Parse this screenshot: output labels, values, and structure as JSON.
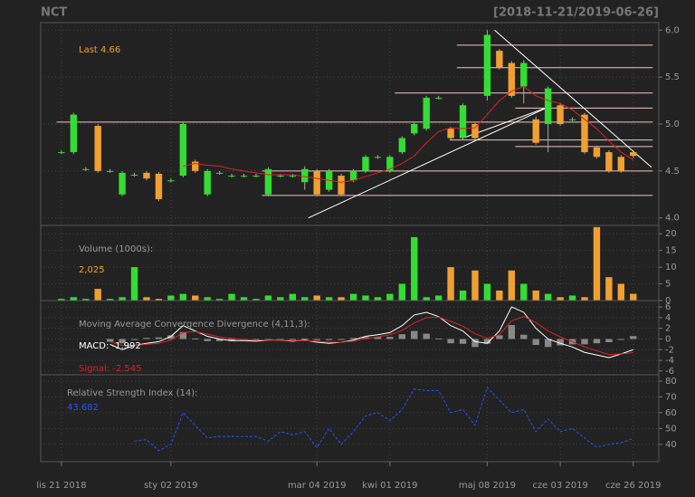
{
  "chart_data": [
    {
      "type": "candlestick",
      "title": "NCT",
      "subtitle": "[2018-11-21/2019-06-26]",
      "annotation": "Last 4.66",
      "up_color": "#33dd33",
      "down_color": "#f0a030",
      "ma_color": "#dd2222",
      "xlim": [
        -1.7,
        49.1
      ],
      "ylim": [
        3.92,
        6.08
      ],
      "yticks": [
        {
          "value": 4,
          "label": "4.0"
        },
        4.5,
        {
          "value": 5,
          "label": "5.0"
        },
        5.5,
        {
          "value": 6,
          "label": "6.0"
        }
      ],
      "open": [
        4.7,
        4.7,
        4.52,
        4.98,
        4.5,
        4.25,
        4.46,
        4.48,
        4.47,
        4.4,
        4.45,
        4.6,
        4.25,
        4.48,
        4.45,
        4.45,
        4.45,
        4.25,
        4.45,
        4.45,
        4.38,
        4.5,
        4.3,
        4.45,
        4.4,
        4.5,
        4.65,
        4.5,
        4.7,
        4.9,
        4.95,
        5.28,
        4.95,
        4.85,
        5.0,
        5.3,
        5.78,
        5.65,
        5.4,
        5.05,
        5.0,
        5.2,
        5.05,
        5.1,
        4.75,
        4.7,
        4.65,
        4.7
      ],
      "high": [
        4.72,
        5.12,
        4.54,
        5.0,
        4.52,
        4.5,
        4.48,
        4.5,
        4.49,
        4.42,
        5.02,
        4.62,
        4.52,
        4.5,
        4.47,
        4.47,
        4.47,
        4.54,
        4.47,
        4.47,
        4.55,
        4.52,
        4.52,
        4.47,
        4.52,
        4.67,
        4.67,
        4.67,
        4.87,
        5.02,
        5.3,
        5.3,
        4.97,
        5.22,
        5.02,
        6.0,
        5.8,
        5.67,
        5.68,
        5.08,
        5.4,
        5.22,
        5.07,
        5.12,
        4.77,
        4.72,
        4.67,
        4.72
      ],
      "low": [
        4.68,
        4.68,
        4.5,
        4.48,
        4.48,
        4.23,
        4.44,
        4.4,
        4.18,
        4.38,
        4.43,
        4.48,
        4.23,
        4.46,
        4.43,
        4.43,
        4.43,
        4.23,
        4.43,
        4.43,
        4.3,
        4.23,
        4.28,
        4.23,
        4.38,
        4.48,
        4.63,
        4.48,
        4.68,
        4.88,
        4.93,
        5.26,
        4.83,
        4.83,
        4.83,
        5.25,
        5.58,
        5.28,
        5.22,
        4.78,
        4.7,
        4.98,
        5.03,
        4.68,
        4.63,
        4.48,
        4.48,
        4.64
      ],
      "close": [
        4.7,
        5.1,
        4.52,
        4.5,
        4.5,
        4.48,
        4.46,
        4.42,
        4.2,
        4.4,
        5.0,
        4.5,
        4.5,
        4.48,
        4.45,
        4.45,
        4.45,
        4.52,
        4.45,
        4.45,
        4.52,
        4.25,
        4.5,
        4.25,
        4.5,
        4.65,
        4.65,
        4.65,
        4.85,
        5.0,
        5.28,
        5.28,
        4.85,
        5.2,
        4.85,
        5.95,
        5.6,
        5.3,
        5.65,
        4.8,
        5.38,
        5.0,
        5.05,
        4.7,
        4.65,
        4.5,
        4.5,
        4.66
      ],
      "ma": [
        null,
        null,
        null,
        null,
        null,
        null,
        null,
        null,
        null,
        null,
        4.55,
        4.58,
        4.56,
        4.55,
        4.52,
        4.5,
        4.48,
        4.46,
        4.46,
        4.46,
        4.44,
        4.42,
        4.4,
        4.38,
        4.4,
        4.44,
        4.48,
        4.52,
        4.58,
        4.66,
        4.8,
        4.92,
        4.96,
        4.95,
        4.96,
        5.1,
        5.25,
        5.35,
        5.4,
        5.3,
        5.25,
        5.22,
        5.15,
        5.05,
        4.95,
        4.82,
        4.7,
        4.62
      ],
      "segments": [
        {
          "color": "#f4c4c4",
          "x": [
            32.5,
            48.6
          ],
          "y": [
            5.84,
            5.84
          ]
        },
        {
          "color": "#f4c4c4",
          "x": [
            32.5,
            48.6
          ],
          "y": [
            5.6,
            5.6
          ]
        },
        {
          "color": "#f4c4c4",
          "x": [
            27.4,
            48.6
          ],
          "y": [
            5.33,
            5.33
          ]
        },
        {
          "color": "#f4c4c4",
          "x": [
            37.3,
            48.6
          ],
          "y": [
            5.17,
            5.17
          ]
        },
        {
          "color": "#f4c4c4",
          "x": [
            -0.4,
            48.6
          ],
          "y": [
            5.02,
            5.02
          ]
        },
        {
          "color": "#f4c4c4",
          "x": [
            31.9,
            48.6
          ],
          "y": [
            4.83,
            4.83
          ]
        },
        {
          "color": "#f4c4c4",
          "x": [
            37.3,
            48.6
          ],
          "y": [
            4.76,
            4.76
          ]
        },
        {
          "color": "#f4c4c4",
          "x": [
            16.5,
            48.6
          ],
          "y": [
            4.5,
            4.5
          ]
        },
        {
          "color": "#f4c4c4",
          "x": [
            16.5,
            48.6
          ],
          "y": [
            4.24,
            4.24
          ]
        },
        {
          "color": "#ffffff",
          "x": [
            20.3,
            40
          ],
          "y": [
            4.0,
            5.18
          ]
        },
        {
          "color": "#ffffff",
          "x": [
            33.2,
            40
          ],
          "y": [
            4.86,
            5.18
          ]
        },
        {
          "color": "#ffffff",
          "x": [
            35.6,
            48.5
          ],
          "y": [
            6.0,
            4.54
          ]
        }
      ]
    },
    {
      "type": "bar",
      "label": "Volume (1000s):",
      "annotation": "2,025",
      "xlim": [
        -1.7,
        49.1
      ],
      "ylim": [
        0,
        22.5
      ],
      "yticks": [
        0,
        5,
        10,
        15,
        20
      ],
      "values": [
        0.5,
        1,
        0.5,
        3.5,
        0.5,
        1,
        10,
        1,
        0.5,
        1.5,
        2,
        1.5,
        1,
        0.5,
        2,
        1,
        0.5,
        1.5,
        1,
        2,
        1,
        1.5,
        1,
        1,
        2,
        1.5,
        1,
        2,
        5,
        19,
        1,
        1.5,
        10,
        3,
        9,
        5,
        3,
        9,
        5,
        3,
        2,
        1,
        1.5,
        1,
        22,
        7,
        5,
        2.025
      ]
    },
    {
      "type": "line",
      "label": "Moving Average Convergence Divergence (4,11,3):",
      "macd_label": "MACD: -1.992",
      "signal_label": "Signal: -2.545",
      "xlim": [
        -1.7,
        49.1
      ],
      "ylim": [
        -6.7,
        7.2
      ],
      "yticks": [
        -6,
        -4,
        -2,
        0,
        2,
        4,
        6
      ],
      "series": [
        {
          "kind": "bar",
          "color": "#888888",
          "values": [
            null,
            null,
            null,
            null,
            -0.5,
            -0.8,
            0,
            0.2,
            0.3,
            0.7,
            1.3,
            0.1,
            -0.4,
            -0.4,
            -0.4,
            -0.2,
            -0.2,
            0,
            0,
            -0.1,
            0.1,
            -0.2,
            -0.2,
            0,
            0.2,
            0.4,
            0.4,
            0.4,
            0.9,
            1.5,
            1.0,
            0.1,
            -0.8,
            -0.9,
            -1.5,
            -0.9,
            0.7,
            2.6,
            0.8,
            -1.1,
            -1.5,
            -1.2,
            -1.0,
            -1.0,
            -0.8,
            -0.6,
            0,
            0.553
          ]
        },
        {
          "kind": "line",
          "color": "#ffffff",
          "values": [
            null,
            null,
            null,
            null,
            -1.0,
            -2.0,
            -1.2,
            -0.8,
            -0.5,
            0.5,
            2.5,
            1.5,
            0.5,
            0,
            -0.3,
            -0.3,
            -0.4,
            -0.2,
            -0.2,
            -0.4,
            -0.2,
            -0.6,
            -0.8,
            -0.6,
            -0.2,
            0.5,
            0.8,
            1.2,
            2.5,
            4.5,
            5.0,
            4.2,
            2.5,
            1.5,
            -0.5,
            -0.8,
            1.5,
            6.0,
            5.0,
            2.0,
            0,
            -0.8,
            -1.5,
            -2.5,
            -3.0,
            -3.5,
            -2.8,
            -1.992
          ]
        },
        {
          "kind": "line",
          "color": "#dd2222",
          "values": [
            null,
            null,
            null,
            null,
            -0.5,
            -1.2,
            -1.2,
            -1.0,
            -0.8,
            -0.2,
            1.2,
            1.4,
            0.9,
            0.4,
            0.1,
            -0.1,
            -0.2,
            -0.2,
            -0.2,
            -0.3,
            -0.3,
            -0.4,
            -0.6,
            -0.6,
            -0.4,
            0.1,
            0.4,
            0.8,
            1.6,
            3.0,
            4.0,
            4.1,
            3.3,
            2.4,
            1.0,
            0.1,
            0.8,
            3.4,
            4.2,
            3.1,
            1.5,
            0.4,
            -0.5,
            -1.5,
            -2.2,
            -2.9,
            -2.8,
            -2.545
          ]
        }
      ]
    },
    {
      "type": "line",
      "label": "Relative Strength Index (14):",
      "value_label": "43.682",
      "xlim": [
        -1.7,
        49.1
      ],
      "ylim": [
        29,
        84
      ],
      "yticks": [
        40,
        50,
        60,
        70,
        80
      ],
      "xticks": [
        {
          "value": 0,
          "label": "lis 21 2018"
        },
        {
          "value": 9,
          "label": "sty 02 2019"
        },
        {
          "value": 21,
          "label": "mar 04 2019"
        },
        {
          "value": 27,
          "label": "kwi 01 2019"
        },
        {
          "value": 35,
          "label": "maj 08 2019"
        },
        {
          "value": 41,
          "label": "cze 03 2019"
        },
        {
          "value": 47,
          "label": "cze 26 2019"
        }
      ],
      "series": [
        {
          "kind": "line",
          "color": "#2255ff",
          "dashed": true,
          "values": [
            null,
            null,
            null,
            null,
            null,
            null,
            42,
            43,
            36,
            40,
            60,
            52,
            44,
            45,
            45,
            45,
            45,
            42,
            48,
            46,
            48,
            38,
            50,
            40,
            48,
            58,
            60,
            55,
            62,
            75,
            74,
            74,
            60,
            62,
            52,
            76,
            68,
            60,
            62,
            48,
            56,
            48,
            50,
            44,
            38,
            40,
            41,
            43.682
          ]
        }
      ]
    }
  ]
}
